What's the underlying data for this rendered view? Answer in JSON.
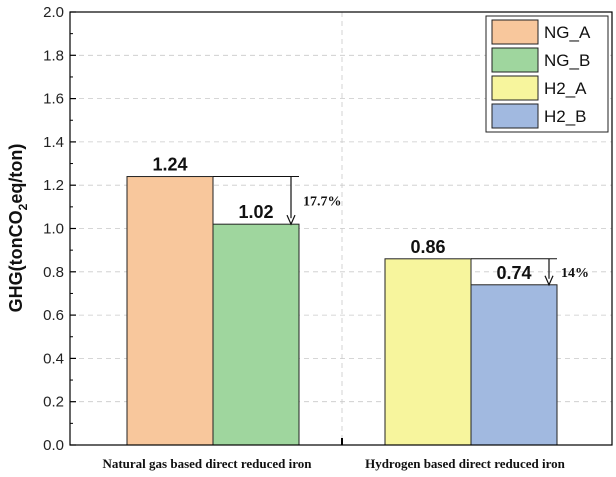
{
  "chart_data": {
    "type": "bar",
    "title": "",
    "ylabel_parts": {
      "pre": "GHG(tonCO",
      "sub": "2",
      "post": "eq/ton)"
    },
    "ylim": [
      0,
      2.0
    ],
    "yticks": [
      "0.0",
      "0.2",
      "0.4",
      "0.6",
      "0.8",
      "1.0",
      "1.2",
      "1.4",
      "1.6",
      "1.8",
      "2.0"
    ],
    "categories": [
      "Natural gas based direct reduced iron",
      "Hydrogen based direct reduced iron"
    ],
    "series": [
      {
        "name": "NG_A",
        "color": "#f8c79c",
        "category": 0,
        "value": 1.24,
        "label": "1.24"
      },
      {
        "name": "NG_B",
        "color": "#9fd69e",
        "category": 0,
        "value": 1.02,
        "label": "1.02"
      },
      {
        "name": "H2_A",
        "color": "#f7f59d",
        "category": 1,
        "value": 0.86,
        "label": "0.86"
      },
      {
        "name": "H2_B",
        "color": "#a1b9e0",
        "category": 1,
        "value": 0.74,
        "label": "0.74"
      }
    ],
    "annotations": [
      {
        "category": 0,
        "from": 1.24,
        "to": 1.02,
        "text": "17.7%"
      },
      {
        "category": 1,
        "from": 0.86,
        "to": 0.74,
        "text": "14%"
      }
    ],
    "legend_position": "top-right",
    "grid": true
  }
}
